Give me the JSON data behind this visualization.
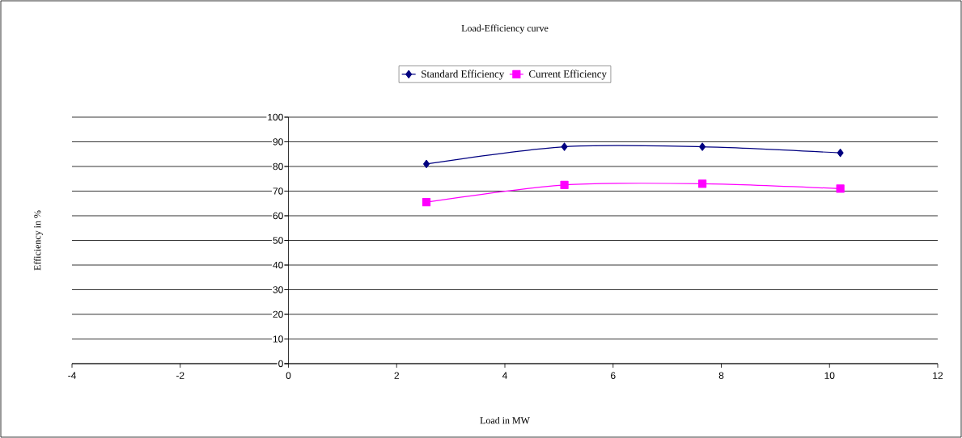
{
  "chart_data": {
    "type": "line",
    "title": "Load-Efficiency curve",
    "xlabel": "Load in MW",
    "ylabel": "Efficiency in %",
    "series": [
      {
        "name": "Standard Efficiency",
        "color": "#000080",
        "marker": "diamond",
        "x": [
          2.55,
          5.1,
          7.65,
          10.2
        ],
        "values": [
          81,
          88,
          88,
          85.5
        ]
      },
      {
        "name": "Current Efficiency",
        "color": "#ff00ff",
        "marker": "square",
        "x": [
          2.55,
          5.1,
          7.65,
          10.2
        ],
        "values": [
          65.5,
          72.5,
          73,
          71
        ]
      }
    ],
    "xlim": [
      -4,
      12
    ],
    "xticks": [
      -4,
      -2,
      0,
      2,
      4,
      6,
      8,
      10,
      12
    ],
    "ylim": [
      0,
      100
    ],
    "yticks": [
      0,
      10,
      20,
      30,
      40,
      50,
      60,
      70,
      80,
      90,
      100
    ],
    "grid": "y",
    "legend": "top",
    "line_style": "solid"
  }
}
